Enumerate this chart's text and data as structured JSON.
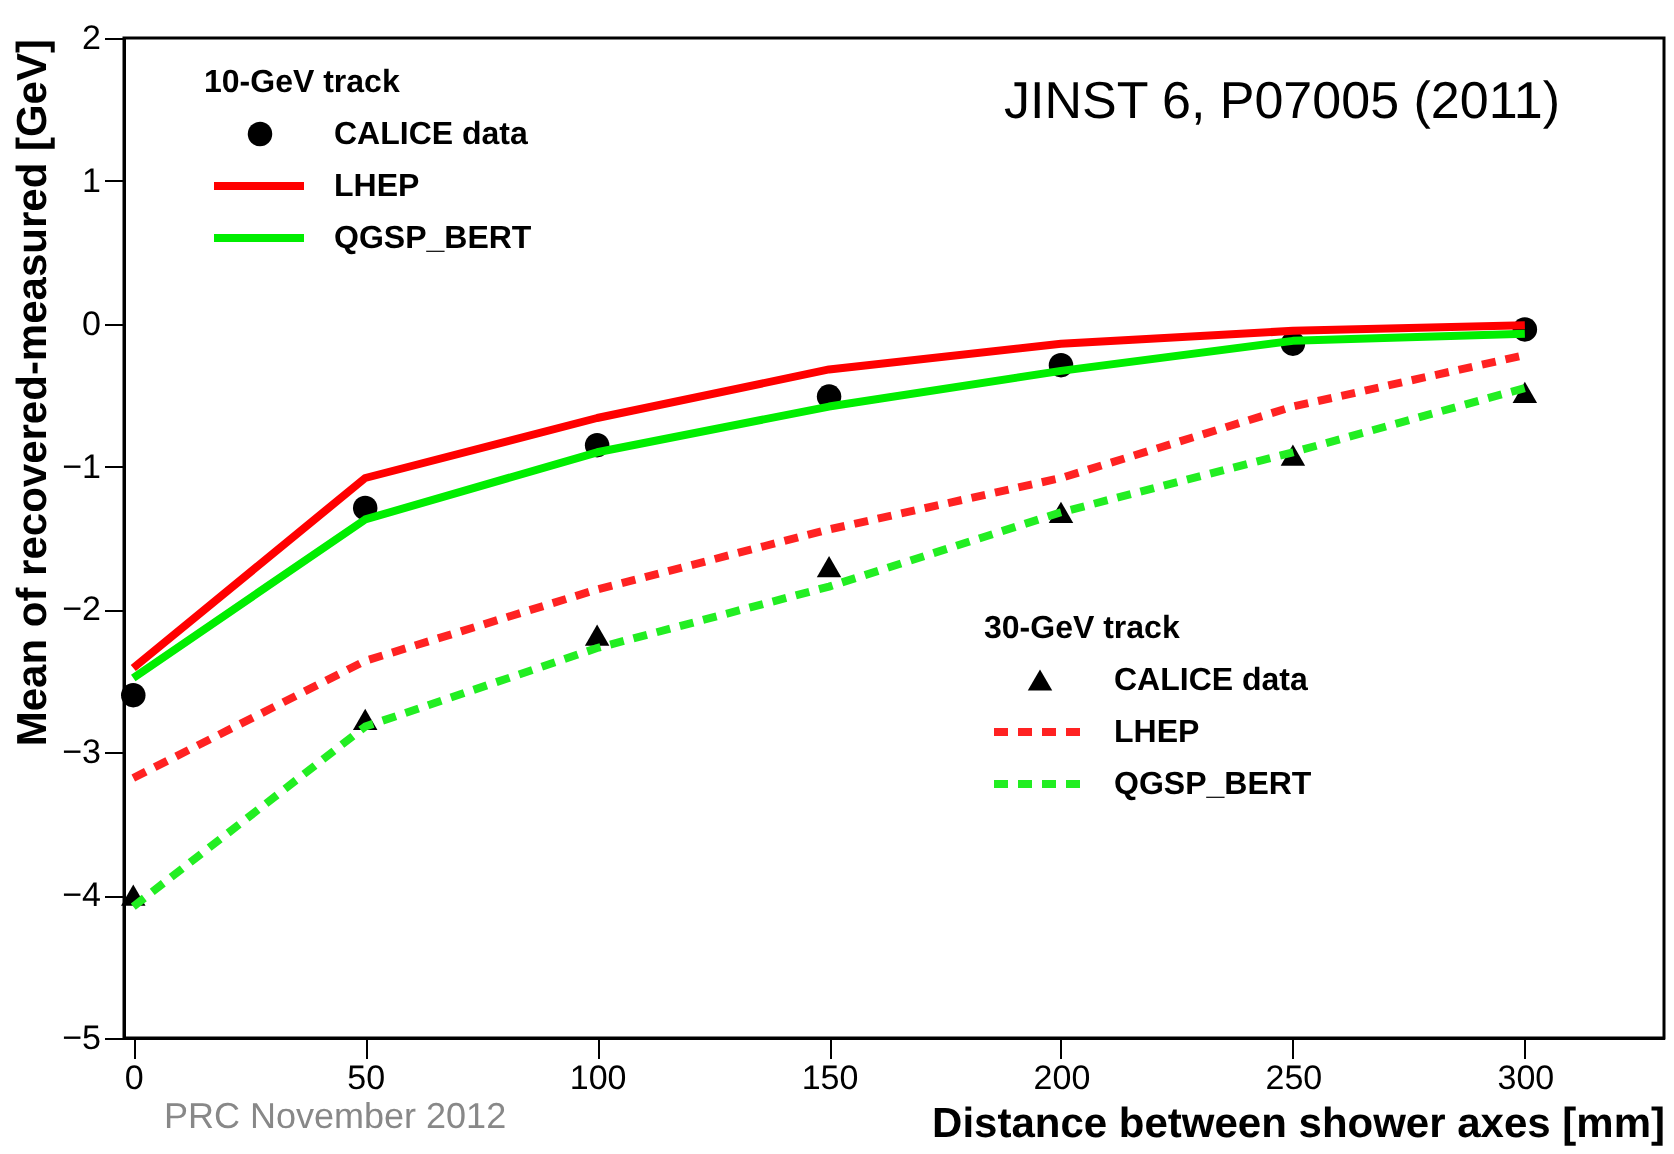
{
  "chart_data": {
    "type": "line",
    "xlabel": "Distance between shower axes [mm]",
    "ylabel": "Mean of recovered-measured [GeV]",
    "annotations": [
      "10-GeV track",
      "30-GeV track",
      "JINST 6, P07005 (2011)",
      "PRC November 2012"
    ],
    "legend": "top left",
    "grid": false,
    "x": [
      0,
      50,
      100,
      150,
      200,
      250,
      300
    ],
    "xlim": [
      -2,
      330
    ],
    "xticks": [
      0,
      50,
      100,
      150,
      200,
      250,
      300
    ],
    "ylim": [
      -5,
      2
    ],
    "yticks": [
      -5,
      -4,
      -3,
      -2,
      -1,
      0,
      1,
      2
    ],
    "series": [
      {
        "name": "CALICE data",
        "type": "scatter",
        "marker": "circle",
        "color": "#000000",
        "values": [
          -2.6,
          -1.29,
          -0.85,
          -0.51,
          -0.29,
          -0.14,
          -0.04
        ]
      },
      {
        "name": "LHEP",
        "line_style": "solid",
        "color": "#ff0000",
        "values": [
          -2.41,
          -1.08,
          -0.66,
          -0.32,
          -0.14,
          -0.05,
          -0.01
        ]
      },
      {
        "name": "QGSP_BERT",
        "line_style": "solid",
        "color": "#00ee00",
        "values": [
          -2.48,
          -1.37,
          -0.9,
          -0.58,
          -0.33,
          -0.12,
          -0.07
        ]
      },
      {
        "name": "CALICE data",
        "type": "scatter",
        "marker": "triangle",
        "color": "#000000",
        "values": [
          -4.0,
          -2.77,
          -2.18,
          -1.7,
          -1.32,
          -0.92,
          -0.48
        ]
      },
      {
        "name": "LHEP",
        "line_style": "dashed",
        "color": "#ff2222",
        "values": [
          -3.18,
          -2.36,
          -1.86,
          -1.44,
          -1.08,
          -0.58,
          -0.22
        ]
      },
      {
        "name": "QGSP_BERT",
        "line_style": "dashed",
        "color": "#22ee22",
        "values": [
          -4.08,
          -2.82,
          -2.27,
          -1.84,
          -1.32,
          -0.9,
          -0.45
        ]
      }
    ]
  }
}
